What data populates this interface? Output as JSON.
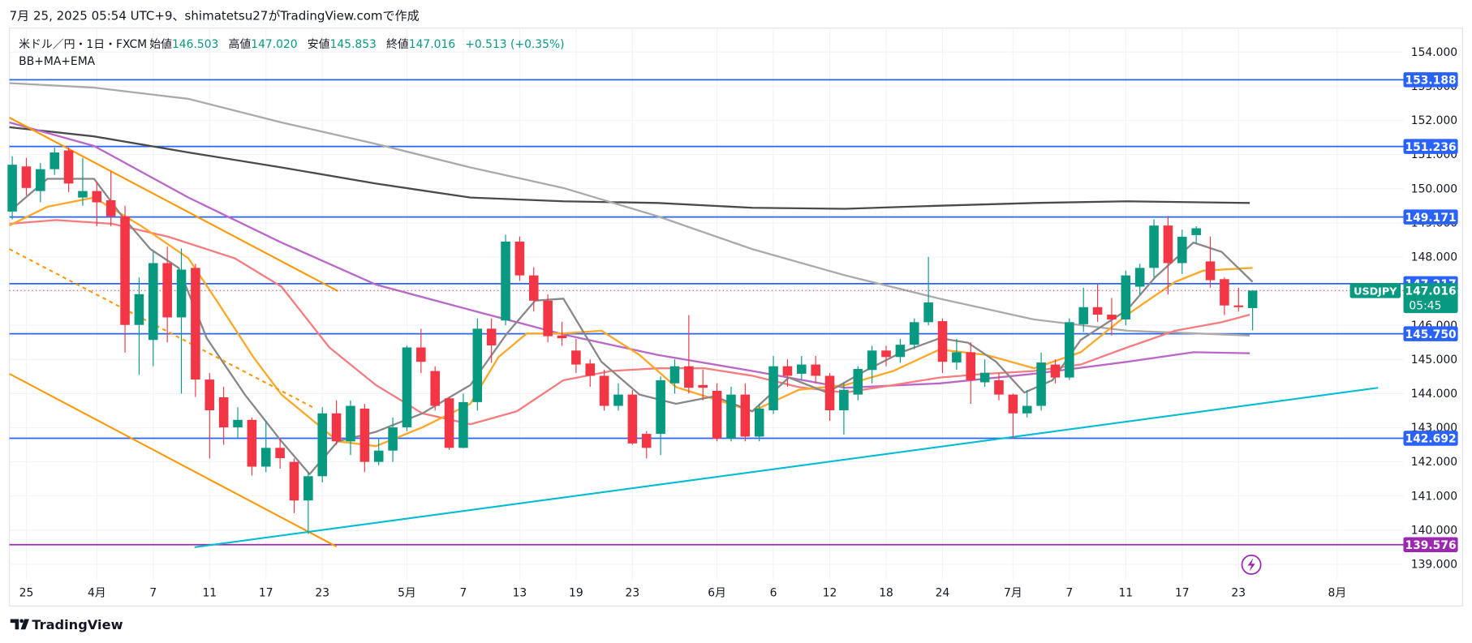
{
  "header": "7月 25, 2025 05:54 UTC+9、shimatetsu27がTradingView.comで作成",
  "footer": "TradingView",
  "chart_data": {
    "type": "candlestick",
    "legend": {
      "symbol": "米ドル／円・1日・FXCM",
      "items": [
        {
          "label": "始値",
          "value": "146.503"
        },
        {
          "label": "高値",
          "value": "147.020"
        },
        {
          "label": "安値",
          "value": "145.853"
        },
        {
          "label": "終値",
          "value": "147.016"
        }
      ],
      "change": "+0.513 (+0.35%)",
      "indicators": "BB+MA+EMA"
    },
    "up_color": "#089981",
    "down_color": "#f23645",
    "xlim": [
      -0.2,
      98.7
    ],
    "ylim": [
      138.55,
      154.7
    ],
    "yticks": [
      {
        "value": 139,
        "label": "139.000"
      },
      {
        "value": 140,
        "label": "140.000"
      },
      {
        "value": 141,
        "label": "141.000"
      },
      {
        "value": 142,
        "label": "142.000"
      },
      {
        "value": 143,
        "label": "143.000"
      },
      {
        "value": 144,
        "label": "144.000"
      },
      {
        "value": 145,
        "label": "145.000"
      },
      {
        "value": 146,
        "label": "146.000"
      },
      {
        "value": 147,
        "label": "147.000"
      },
      {
        "value": 148,
        "label": "148.000"
      },
      {
        "value": 149,
        "label": "149.000"
      },
      {
        "value": 150,
        "label": "150.000"
      },
      {
        "value": 151,
        "label": "151.000"
      },
      {
        "value": 152,
        "label": "152.000"
      },
      {
        "value": 153,
        "label": "153.000"
      },
      {
        "value": 154,
        "label": "154.000"
      }
    ],
    "xticks": [
      {
        "value": 1,
        "label": "25"
      },
      {
        "value": 6,
        "label": "4月"
      },
      {
        "value": 10,
        "label": "7"
      },
      {
        "value": 14,
        "label": "11"
      },
      {
        "value": 18,
        "label": "17"
      },
      {
        "value": 22,
        "label": "23"
      },
      {
        "value": 28,
        "label": "5月"
      },
      {
        "value": 32,
        "label": "7"
      },
      {
        "value": 36,
        "label": "13"
      },
      {
        "value": 40,
        "label": "19"
      },
      {
        "value": 44,
        "label": "23"
      },
      {
        "value": 50,
        "label": "6月"
      },
      {
        "value": 54,
        "label": "6"
      },
      {
        "value": 58,
        "label": "12"
      },
      {
        "value": 62,
        "label": "18"
      },
      {
        "value": 66,
        "label": "24"
      },
      {
        "value": 71,
        "label": "7月"
      },
      {
        "value": 75,
        "label": "7"
      },
      {
        "value": 79,
        "label": "11"
      },
      {
        "value": 83,
        "label": "17"
      },
      {
        "value": 87,
        "label": "23"
      },
      {
        "value": 94,
        "label": "8月"
      }
    ],
    "grid": true,
    "candles": [
      [
        149.33,
        150.95,
        149.1,
        150.7
      ],
      [
        150.65,
        150.9,
        149.8,
        150.02
      ],
      [
        149.93,
        150.75,
        149.6,
        150.57
      ],
      [
        150.57,
        151.2,
        150.4,
        151.06
      ],
      [
        151.12,
        151.2,
        149.9,
        150.15
      ],
      [
        149.74,
        150.9,
        149.5,
        149.93
      ],
      [
        149.93,
        150.2,
        148.9,
        149.6
      ],
      [
        149.66,
        150.5,
        148.9,
        149.19
      ],
      [
        149.19,
        149.5,
        145.2,
        146.01
      ],
      [
        146.01,
        147.4,
        144.55,
        146.91
      ],
      [
        145.57,
        148.15,
        144.8,
        147.82
      ],
      [
        147.82,
        148.3,
        145.5,
        146.23
      ],
      [
        146.23,
        148.25,
        144.0,
        147.63
      ],
      [
        147.68,
        147.8,
        143.9,
        144.41
      ],
      [
        144.41,
        144.6,
        142.1,
        143.51
      ],
      [
        143.89,
        144.2,
        142.5,
        143.01
      ],
      [
        143.01,
        143.6,
        142.7,
        143.23
      ],
      [
        143.23,
        143.3,
        141.6,
        141.86
      ],
      [
        141.86,
        143.2,
        141.7,
        142.41
      ],
      [
        142.41,
        142.7,
        141.8,
        142.11
      ],
      [
        142.0,
        142.1,
        140.5,
        140.87
      ],
      [
        140.87,
        141.7,
        139.89,
        141.58
      ],
      [
        141.58,
        143.6,
        141.4,
        143.42
      ],
      [
        143.42,
        143.8,
        142.5,
        142.6
      ],
      [
        142.6,
        143.8,
        142.2,
        143.64
      ],
      [
        143.56,
        143.7,
        141.7,
        142.0
      ],
      [
        142.0,
        142.7,
        141.9,
        142.33
      ],
      [
        142.33,
        143.3,
        142.0,
        143.01
      ],
      [
        143.01,
        145.4,
        142.9,
        145.35
      ],
      [
        145.35,
        145.9,
        144.6,
        144.93
      ],
      [
        144.66,
        144.8,
        143.5,
        143.64
      ],
      [
        143.86,
        143.9,
        142.35,
        142.41
      ],
      [
        142.41,
        144.0,
        142.4,
        143.75
      ],
      [
        143.75,
        146.2,
        143.5,
        145.9
      ],
      [
        145.9,
        146.2,
        144.9,
        145.41
      ],
      [
        146.14,
        148.65,
        146.0,
        148.45
      ],
      [
        148.45,
        148.6,
        147.3,
        147.46
      ],
      [
        147.46,
        147.7,
        146.4,
        146.72
      ],
      [
        146.72,
        146.9,
        145.5,
        145.68
      ],
      [
        145.7,
        146.1,
        145.4,
        145.62
      ],
      [
        145.26,
        145.6,
        144.6,
        144.85
      ],
      [
        144.88,
        145.0,
        144.2,
        144.52
      ],
      [
        144.52,
        144.7,
        143.5,
        143.64
      ],
      [
        143.64,
        144.3,
        143.5,
        143.97
      ],
      [
        143.97,
        144.1,
        142.5,
        142.54
      ],
      [
        142.82,
        142.9,
        142.1,
        142.41
      ],
      [
        142.82,
        144.5,
        142.2,
        144.39
      ],
      [
        144.3,
        145.0,
        144.0,
        144.8
      ],
      [
        144.8,
        146.3,
        144.0,
        144.17
      ],
      [
        144.25,
        144.7,
        143.8,
        144.17
      ],
      [
        144.08,
        144.3,
        142.6,
        142.68
      ],
      [
        142.68,
        144.2,
        142.6,
        143.97
      ],
      [
        143.97,
        144.3,
        142.6,
        142.74
      ],
      [
        142.74,
        143.7,
        142.6,
        143.56
      ],
      [
        143.51,
        145.1,
        143.4,
        144.8
      ],
      [
        144.8,
        145.0,
        144.2,
        144.52
      ],
      [
        144.58,
        145.1,
        144.4,
        144.85
      ],
      [
        144.85,
        145.1,
        144.3,
        144.52
      ],
      [
        144.52,
        144.6,
        143.2,
        143.51
      ],
      [
        143.51,
        144.3,
        142.8,
        144.11
      ],
      [
        143.97,
        144.8,
        143.8,
        144.72
      ],
      [
        144.69,
        145.4,
        144.3,
        145.26
      ],
      [
        145.26,
        145.4,
        144.8,
        145.07
      ],
      [
        145.07,
        145.6,
        144.9,
        145.43
      ],
      [
        145.43,
        146.2,
        145.3,
        146.09
      ],
      [
        146.09,
        148.0,
        146.0,
        146.67
      ],
      [
        146.12,
        146.2,
        144.6,
        144.93
      ],
      [
        144.91,
        145.6,
        144.7,
        145.21
      ],
      [
        145.21,
        145.5,
        143.7,
        144.39
      ],
      [
        144.33,
        145.0,
        144.2,
        144.61
      ],
      [
        144.39,
        144.6,
        143.8,
        143.97
      ],
      [
        143.97,
        144.0,
        142.68,
        143.42
      ],
      [
        143.42,
        144.1,
        143.3,
        143.64
      ],
      [
        143.64,
        145.2,
        143.5,
        144.91
      ],
      [
        144.85,
        145.0,
        144.3,
        144.47
      ],
      [
        144.47,
        146.2,
        144.4,
        146.09
      ],
      [
        146.03,
        147.1,
        145.8,
        146.53
      ],
      [
        146.53,
        147.2,
        146.1,
        146.31
      ],
      [
        146.31,
        146.8,
        145.7,
        146.17
      ],
      [
        146.17,
        147.6,
        146.0,
        147.46
      ],
      [
        147.13,
        147.8,
        146.9,
        147.68
      ],
      [
        147.68,
        149.1,
        147.4,
        148.92
      ],
      [
        148.92,
        149.2,
        146.9,
        147.82
      ],
      [
        147.82,
        148.8,
        147.5,
        148.59
      ],
      [
        148.64,
        148.9,
        148.4,
        148.84
      ],
      [
        147.87,
        148.6,
        147.1,
        147.32
      ],
      [
        147.35,
        147.4,
        146.3,
        146.58
      ],
      [
        146.58,
        147.1,
        146.4,
        146.53
      ],
      [
        146.503,
        147.02,
        145.853,
        147.016
      ]
    ],
    "indicators": [
      {
        "color": "#4a4a4a",
        "x": [
          -0.2,
          5.8,
          12.5,
          19.1,
          25.8,
          32.5,
          39.1,
          45.8,
          52.5,
          59.1,
          65.8,
          72.5,
          79.1,
          87.8
        ],
        "values": [
          151.8,
          151.53,
          151.06,
          150.62,
          150.15,
          149.74,
          149.63,
          149.58,
          149.44,
          149.41,
          149.5,
          149.58,
          149.63,
          149.58
        ]
      },
      {
        "color": "#aaaaaa",
        "x": [
          -0.2,
          5.8,
          12.5,
          19.1,
          25.8,
          32.5,
          39.1,
          45.8,
          52.5,
          59.1,
          65.8,
          72.5,
          79.1,
          87.8
        ],
        "values": [
          153.09,
          152.96,
          152.63,
          151.94,
          151.31,
          150.62,
          150.02,
          149.19,
          148.23,
          147.46,
          146.78,
          146.17,
          145.84,
          145.7
        ]
      },
      {
        "color": "#ba68c8",
        "x": [
          -0.2,
          5.8,
          12.5,
          19.1,
          25.8,
          32.5,
          39.1,
          45.8,
          52.5,
          59.1,
          65.8,
          72.5,
          79.1,
          83.8,
          87.8
        ],
        "values": [
          151.94,
          151.25,
          149.74,
          148.42,
          147.19,
          146.45,
          145.73,
          145.13,
          144.66,
          144.17,
          144.3,
          144.58,
          144.93,
          145.21,
          145.18
        ]
      },
      {
        "color": "#f77c80",
        "x": [
          -0.2,
          3.1,
          7.1,
          11.1,
          15.8,
          19.1,
          22.5,
          25.8,
          29.1,
          32.5,
          35.8,
          39.1,
          42.5,
          45.8,
          49.1,
          52.5,
          55.8,
          59.1,
          62.5,
          65.8,
          69.1,
          72.5,
          75.8,
          79.1,
          82.5,
          85.8,
          87.8
        ],
        "values": [
          148.97,
          149.08,
          148.97,
          148.59,
          147.96,
          147.13,
          145.35,
          144.25,
          143.42,
          143.1,
          143.48,
          144.39,
          144.66,
          144.74,
          144.74,
          144.52,
          144.19,
          144.03,
          144.25,
          144.47,
          144.58,
          144.66,
          144.85,
          145.35,
          145.84,
          146.09,
          146.31
        ]
      },
      {
        "color": "#ffa726",
        "x": [
          -0.2,
          2.5,
          5.8,
          9.1,
          12.5,
          14.5,
          17.1,
          19.1,
          21.1,
          23.1,
          25.8,
          29.1,
          32.5,
          34.5,
          36.5,
          39.1,
          41.8,
          44.5,
          47.1,
          49.8,
          52.5,
          55.8,
          59.1,
          62.5,
          65.8,
          69.1,
          72.5,
          75.8,
          79.1,
          82.5,
          84.5,
          88
        ],
        "values": [
          148.92,
          149.47,
          149.74,
          148.92,
          147.96,
          146.72,
          145.07,
          143.97,
          143.29,
          142.6,
          142.46,
          143.01,
          143.7,
          145.07,
          145.76,
          145.76,
          145.84,
          145.13,
          144.19,
          143.84,
          143.48,
          144.11,
          144.25,
          144.66,
          145.29,
          145.13,
          144.74,
          145.21,
          146.31,
          147.27,
          147.6,
          147.68
        ]
      },
      {
        "color": "#888888",
        "x": [
          -0.2,
          2.5,
          5.8,
          7.8,
          9.8,
          11.8,
          13.8,
          16.5,
          19.1,
          21.1,
          23.1,
          25.8,
          29.1,
          32.5,
          35.1,
          37.1,
          39.1,
          41.8,
          44.5,
          47.1,
          49.8,
          52.5,
          55.1,
          57.8,
          60.5,
          63.1,
          65.8,
          67.8,
          69.8,
          71.8,
          73.8,
          75.8,
          79.1,
          81.1,
          83.8,
          85.8,
          88
        ],
        "values": [
          149.33,
          150.29,
          150.29,
          149.19,
          148.23,
          147.68,
          145.62,
          143.97,
          142.6,
          141.64,
          142.6,
          142.88,
          143.42,
          144.25,
          145.76,
          146.72,
          146.78,
          144.93,
          143.97,
          143.7,
          143.92,
          143.48,
          144.47,
          144.03,
          144.66,
          145.21,
          145.62,
          145.49,
          144.93,
          144.03,
          144.39,
          145.57,
          146.45,
          147.41,
          148.42,
          148.15,
          147.27
        ]
      }
    ],
    "trendlines": [
      {
        "color": "#ff9800",
        "dashed": false,
        "x": [
          -0.2,
          23.1
        ],
        "values": [
          152.08,
          147.0
        ]
      },
      {
        "color": "#ff9800",
        "dashed": false,
        "x": [
          -0.2,
          23.0
        ],
        "values": [
          144.58,
          139.52
        ]
      },
      {
        "color": "#ff9800",
        "dashed": true,
        "x": [
          -0.2,
          21.5
        ],
        "values": [
          148.23,
          143.56
        ]
      },
      {
        "color": "#00bcd4",
        "dashed": false,
        "x": [
          12.93,
          96.9
        ],
        "values": [
          139.5,
          144.17
        ]
      }
    ],
    "levels": [
      {
        "value": 153.188,
        "color": "#2962ff"
      },
      {
        "value": 151.236,
        "color": "#2962ff"
      },
      {
        "value": 149.171,
        "color": "#2962ff"
      },
      {
        "value": 147.217,
        "color": "#2962ff"
      },
      {
        "value": 145.75,
        "value_label": "145.750",
        "color": "#2962ff"
      },
      {
        "value": 142.692,
        "color": "#2962ff"
      },
      {
        "value": 139.576,
        "color": "#9c27b0"
      }
    ],
    "last_price": {
      "symbol": "USDJPY",
      "value": 147.016,
      "countdown": "05:45",
      "color": "#089981",
      "line_color": "#f23645"
    }
  }
}
